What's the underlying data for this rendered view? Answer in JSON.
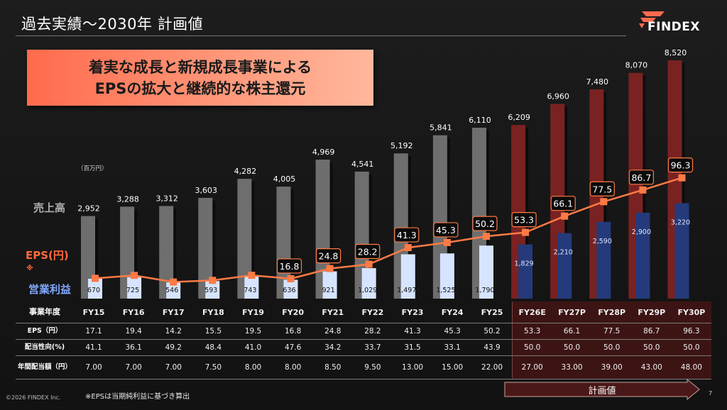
{
  "header": {
    "title": "過去実績～2030年 計画値",
    "logo": "FINDEX"
  },
  "banner": {
    "line1": "着実な成長と新規成長事業による",
    "line2": "EPSの拡大と継続的な株主還元"
  },
  "labels": {
    "unit": "（百万円）",
    "sales": "売上高",
    "eps": "EPS(円)",
    "eps_note": "※",
    "op": "営業利益"
  },
  "chart_data": {
    "type": "bar",
    "categories": [
      "FY15",
      "FY16",
      "FY17",
      "FY18",
      "FY19",
      "FY20",
      "FY21",
      "FY22",
      "FY23",
      "FY24",
      "FY25",
      "FY26E",
      "FY27P",
      "FY28P",
      "FY29P",
      "FY30P"
    ],
    "series": [
      {
        "name": "売上高",
        "values": [
          2952,
          3288,
          3312,
          3603,
          4282,
          4005,
          4969,
          4541,
          5192,
          5841,
          6110,
          6209,
          6960,
          7480,
          8070,
          8520
        ]
      },
      {
        "name": "営業利益",
        "values": [
          670,
          725,
          546,
          593,
          743,
          636,
          921,
          1029,
          1497,
          1525,
          1790,
          1829,
          2210,
          2590,
          2900,
          3220
        ]
      },
      {
        "name": "EPS(円)",
        "type": "line",
        "values": [
          17.1,
          19.4,
          14.2,
          15.5,
          19.5,
          16.8,
          24.8,
          28.2,
          41.3,
          45.3,
          50.2,
          53.3,
          66.1,
          77.5,
          86.7,
          96.3
        ]
      }
    ],
    "bar_labels": [
      "2,952",
      "3,288",
      "3,312",
      "3,603",
      "4,282",
      "4,005",
      "4,969",
      "4,541",
      "5,192",
      "5,841",
      "6,110",
      "6,209",
      "6,960",
      "7,480",
      "8,070",
      "8,520"
    ],
    "op_labels": [
      "670",
      "725",
      "546",
      "593",
      "743",
      "636",
      "921",
      "1,029",
      "1,497",
      "1,525",
      "1,790",
      "1,829",
      "2,210",
      "2,590",
      "2,900",
      "3,220"
    ],
    "eps_labels": [
      "",
      "",
      "",
      "",
      "",
      "16.8",
      "24.8",
      "28.2",
      "41.3",
      "45.3",
      "50.2",
      "53.3",
      "66.1",
      "77.5",
      "86.7",
      "96.3"
    ],
    "plan_start_index": 11,
    "colors": {
      "sales_actual": "#6e6e6e",
      "sales_plan": "#7a2222",
      "op_actual": "#d6e4ff",
      "op_plan": "#243a7a",
      "eps_line": "#ff7a45"
    }
  },
  "table": {
    "header": "事業年度",
    "years": [
      "FY15",
      "FY16",
      "FY17",
      "FY18",
      "FY19",
      "FY20",
      "FY21",
      "FY22",
      "FY23",
      "FY24",
      "FY25",
      "FY26E",
      "FY27P",
      "FY28P",
      "FY29P",
      "FY30P"
    ],
    "rows": [
      {
        "label": "EPS（円）",
        "values": [
          "17.1",
          "19.4",
          "14.2",
          "15.5",
          "19.5",
          "16.8",
          "24.8",
          "28.2",
          "41.3",
          "45.3",
          "50.2",
          "53.3",
          "66.1",
          "77.5",
          "86.7",
          "96.3"
        ]
      },
      {
        "label": "配当性向(%)",
        "values": [
          "41.1",
          "36.1",
          "49.2",
          "48.4",
          "41.0",
          "47.6",
          "34.2",
          "33.7",
          "31.5",
          "33.1",
          "43.9",
          "50.0",
          "50.0",
          "50.0",
          "50.0",
          "50.0"
        ]
      },
      {
        "label": "年間配当額（円）",
        "values": [
          "7.00",
          "7.00",
          "7.00",
          "7.50",
          "8.00",
          "8.00",
          "8.50",
          "9.50",
          "13.00",
          "15.00",
          "22.00",
          "27.00",
          "33.00",
          "39.00",
          "43.00",
          "48.00"
        ]
      }
    ]
  },
  "footer": {
    "footnote": "※EPSは当期純利益に基づき算出",
    "copyright": "©2026 FINDEX Inc.",
    "page": "7",
    "plan_arrow": "計画値"
  }
}
